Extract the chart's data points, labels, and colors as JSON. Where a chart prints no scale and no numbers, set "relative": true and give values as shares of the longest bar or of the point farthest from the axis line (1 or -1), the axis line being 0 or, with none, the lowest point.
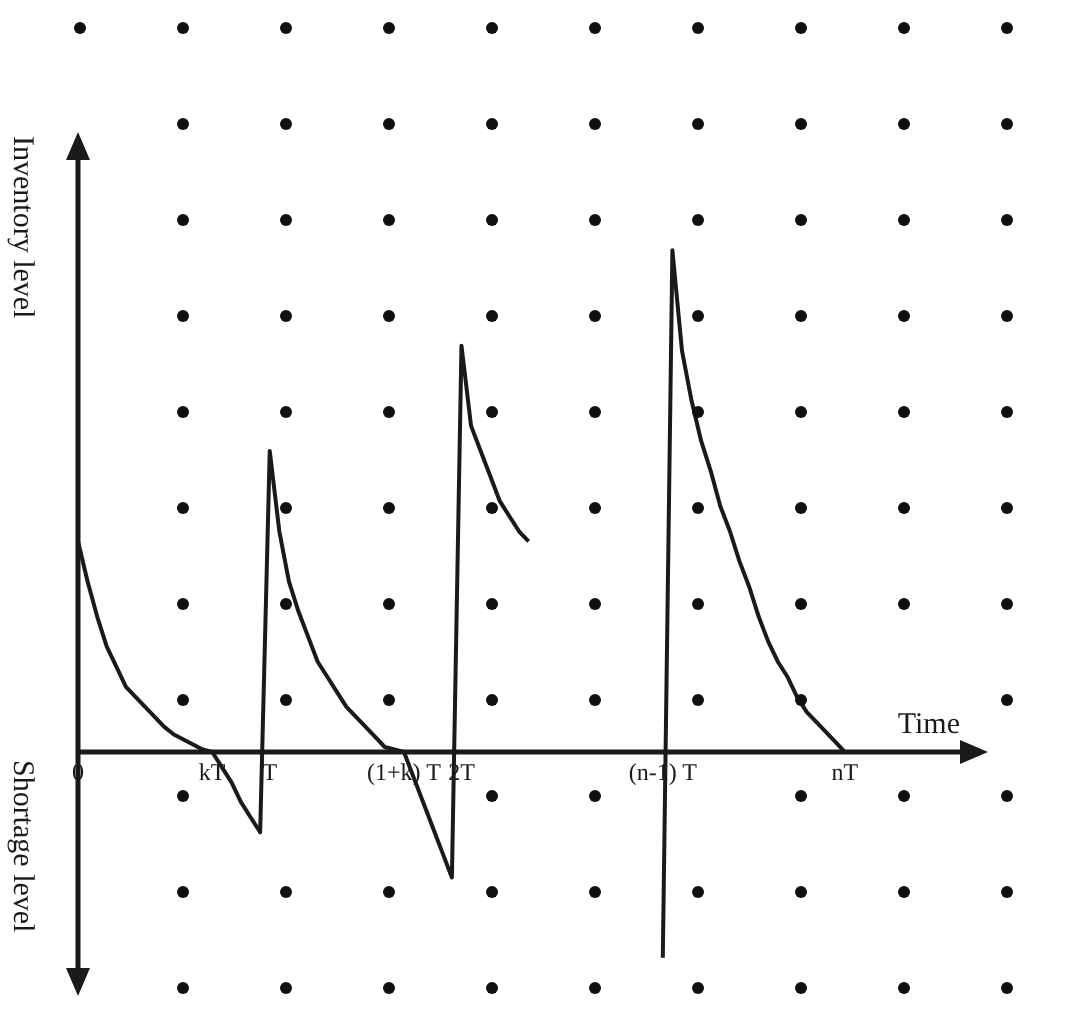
{
  "chart_data": {
    "type": "line",
    "relative": true,
    "xlabel": "Time",
    "ylabel": "Inventory level",
    "annotations": [
      "Shortage level"
    ],
    "categories": [
      "0",
      null,
      null,
      null,
      null,
      null,
      null,
      null,
      null,
      null,
      null,
      null,
      null,
      null,
      "kT",
      null,
      null,
      null,
      null,
      null,
      "T",
      null,
      null,
      null,
      null,
      null,
      null,
      null,
      null,
      null,
      null,
      null,
      null,
      null,
      "(1+k) T",
      null,
      null,
      null,
      null,
      null,
      "2T",
      null,
      null,
      null,
      null,
      null,
      null,
      null,
      null,
      null,
      null,
      null,
      null,
      null,
      null,
      null,
      null,
      null,
      null,
      null,
      null,
      "(n-1) T",
      null,
      null,
      null,
      null,
      null,
      null,
      null,
      null,
      null,
      null,
      null,
      null,
      null,
      null,
      null,
      null,
      null,
      null,
      "nT",
      null,
      null,
      null,
      null,
      null,
      null,
      null,
      null,
      null,
      null,
      null,
      null
    ],
    "series": [
      {
        "color": "#1a1a1a",
        "values": [
          0.42,
          0.34,
          0.27,
          0.21,
          0.17,
          0.13,
          0.11,
          0.09,
          0.07,
          0.05,
          0.035,
          0.025,
          0.015,
          0.005,
          0,
          -0.03,
          -0.06,
          -0.1,
          -0.13,
          -0.16,
          0.6,
          0.44,
          0.34,
          0.28,
          0.23,
          0.18,
          0.15,
          0.12,
          0.09,
          0.07,
          0.05,
          0.03,
          0.01,
          0.005,
          0,
          -0.05,
          -0.1,
          -0.15,
          -0.2,
          -0.25,
          0.81,
          0.65,
          0.6,
          0.55,
          0.5,
          0.47,
          0.44,
          0.42,
          null,
          null,
          null,
          null,
          null,
          null,
          null,
          null,
          null,
          null,
          null,
          null,
          null,
          -0.41,
          1.0,
          0.8,
          0.7,
          0.62,
          0.56,
          0.49,
          0.44,
          0.38,
          0.33,
          0.27,
          0.22,
          0.18,
          0.15,
          0.11,
          0.08,
          0.06,
          0.04,
          0.02,
          0,
          null,
          null,
          null,
          null,
          null,
          null,
          null,
          null,
          null,
          null,
          null,
          null
        ]
      }
    ],
    "grid": false,
    "legend": false,
    "marker": "none",
    "line_style": "solid"
  }
}
